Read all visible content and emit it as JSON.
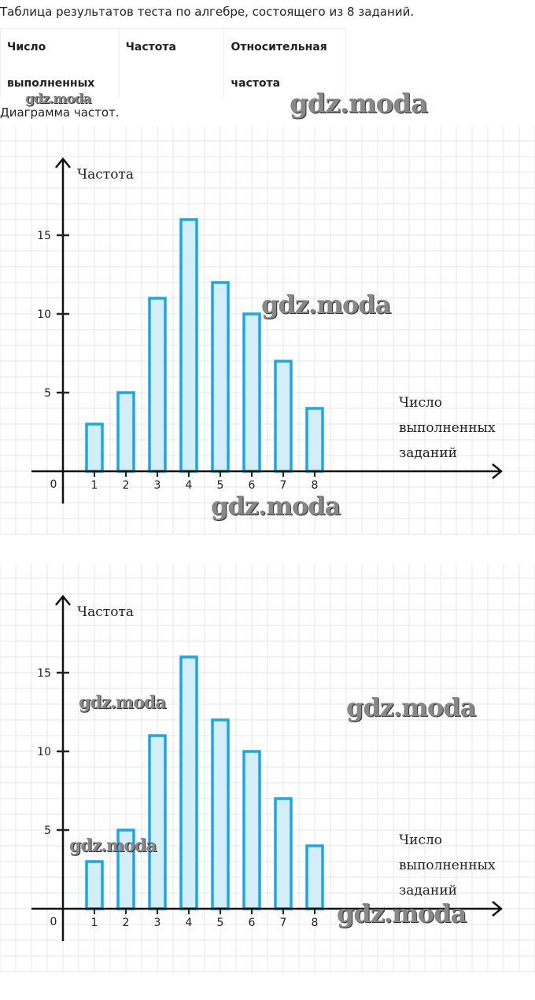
{
  "intro": "Таблица результатов теста по алгебре, состоящего из 8 заданий.",
  "table": {
    "headers": [
      [
        "Число",
        "выполненных"
      ],
      [
        "Частота",
        ""
      ],
      [
        "Относительная",
        "частота"
      ]
    ]
  },
  "caption": "Диаграмма частот.",
  "watermark": "gdz.moda",
  "colors": {
    "bar_stroke": "#1aa6e8",
    "bar_fill": "#d4eef9",
    "grid": "#e6e6e6"
  },
  "chart_data": [
    {
      "type": "bar",
      "categories": [
        "1",
        "2",
        "3",
        "4",
        "5",
        "6",
        "7",
        "8"
      ],
      "values": [
        3,
        5,
        11,
        16,
        12,
        10,
        7,
        4
      ],
      "ylabel": "Частота",
      "xlabel": [
        "Число",
        "выполненных",
        "заданий"
      ],
      "yticks": [
        5,
        10,
        15
      ],
      "origin_label": "0",
      "ylim": [
        0,
        19
      ],
      "grid": true
    },
    {
      "type": "bar",
      "categories": [
        "1",
        "2",
        "3",
        "4",
        "5",
        "6",
        "7",
        "8"
      ],
      "values": [
        3,
        5,
        11,
        16,
        12,
        10,
        7,
        4
      ],
      "ylabel": "Частота",
      "xlabel": [
        "Число",
        "выполненных",
        "заданий"
      ],
      "yticks": [
        5,
        10,
        15
      ],
      "origin_label": "0",
      "ylim": [
        0,
        19
      ],
      "grid": true
    }
  ]
}
